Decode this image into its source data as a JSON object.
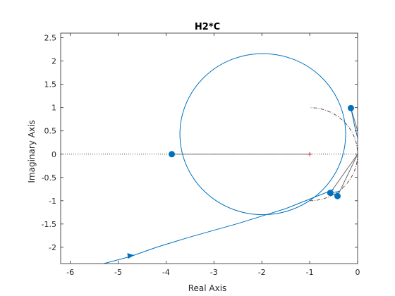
{
  "chart_data": {
    "type": "line",
    "title": "H2*C",
    "xlabel": "Real Axis",
    "ylabel": "Imaginary Axis",
    "xlim": [
      -6.2,
      0
    ],
    "ylim": [
      -2.35,
      2.6
    ],
    "xticks": [
      -6,
      -5,
      -4,
      -3,
      -2,
      -1,
      0
    ],
    "xtick_labels": [
      "-6",
      "-5",
      "-4",
      "-3",
      "-2",
      "-1",
      "0"
    ],
    "yticks": [
      -2,
      -1.5,
      -1,
      -0.5,
      0,
      0.5,
      1,
      1.5,
      2,
      2.5
    ],
    "ytick_labels": [
      "-2",
      "-1.5",
      "-1",
      "-0.5",
      "0",
      "0.5",
      "1",
      "1.5",
      "2",
      "2.5"
    ],
    "grid": false,
    "box": true,
    "colors": {
      "nyquist": "#0072BD",
      "unit_circle": "#6e4a4a",
      "chords": "#6b6b6b",
      "critical_point": "#d62728",
      "zero_line": "#000000",
      "axes": "#262626"
    },
    "series": [
      {
        "role": "nyquist-loop",
        "circle_center": [
          -1.98,
          0.43
        ],
        "circle_radius": 1.73,
        "x_span": [
          -3.88,
          0
        ],
        "y_span": [
          -1.7,
          2.15
        ]
      },
      {
        "role": "nyquist-tail",
        "x": [
          -0.5,
          -1.5,
          -2.5,
          -3.5,
          -4.2,
          -4.75,
          -5.3
        ],
        "y": [
          -0.76,
          -1.17,
          -1.49,
          -1.78,
          -2.0,
          -2.2,
          -2.35
        ]
      },
      {
        "role": "unit-circle-arc",
        "center": [
          -1,
          0
        ],
        "radius": 1,
        "angle_range_deg": [
          -90,
          90
        ]
      }
    ],
    "markers": [
      {
        "x": -0.14,
        "y": 0.99
      },
      {
        "x": -3.88,
        "y": 0.0
      },
      {
        "x": -0.57,
        "y": -0.83
      },
      {
        "x": -0.42,
        "y": -0.9
      }
    ],
    "critical_point": {
      "x": -1,
      "y": 0
    },
    "chords": [
      {
        "from": [
          -3.88,
          0
        ],
        "to": [
          -1,
          0
        ]
      },
      {
        "from": [
          -0.14,
          0.99
        ],
        "to": [
          0,
          0.5
        ]
      },
      {
        "from": [
          -0.57,
          -0.83
        ],
        "to": [
          0,
          0
        ]
      },
      {
        "from": [
          -0.42,
          -0.9
        ],
        "to": [
          0,
          0
        ]
      }
    ],
    "arrows": [
      {
        "x": -4.75,
        "y": -2.2,
        "direction": "right"
      }
    ]
  }
}
